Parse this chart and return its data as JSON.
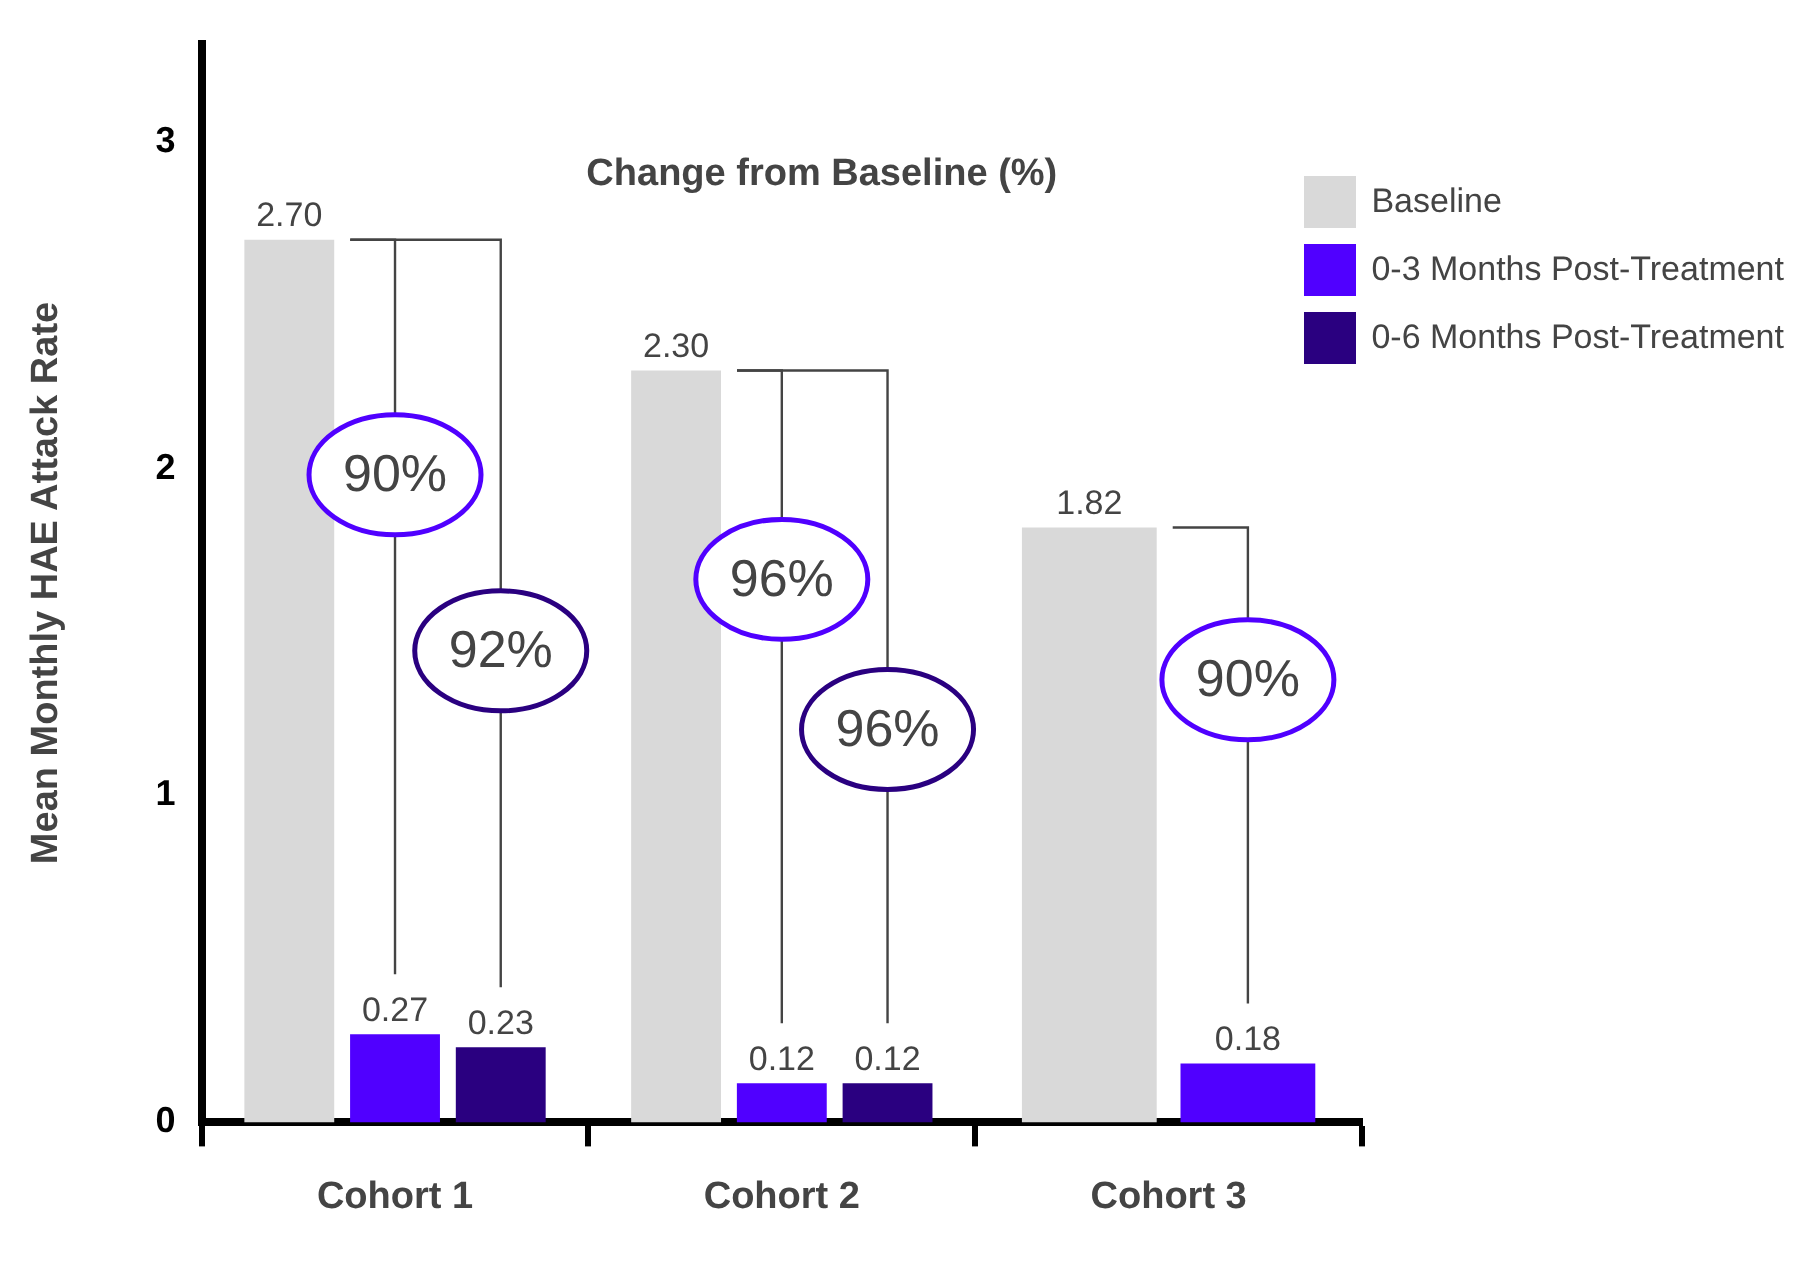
{
  "chart_data": {
    "type": "bar",
    "title": "Change from Baseline (%)",
    "ylabel": "Mean Monthly HAE Attack Rate",
    "categories": [
      "Cohort 1",
      "Cohort 2",
      "Cohort 3"
    ],
    "series": [
      {
        "name": "Baseline",
        "color": "#d9d9d9",
        "values": [
          2.7,
          2.3,
          1.82
        ],
        "value_labels": [
          "2.70",
          "2.30",
          "1.82"
        ]
      },
      {
        "name": "0-3 Months Post-Treatment",
        "color": "#5000ff",
        "values": [
          0.27,
          0.12,
          0.18
        ],
        "value_labels": [
          "0.27",
          "0.12",
          "0.18"
        ]
      },
      {
        "name": "0-6 Months Post-Treatment",
        "color": "#2a0080",
        "values": [
          0.23,
          0.12,
          null
        ],
        "value_labels": [
          "0.23",
          "0.12",
          null
        ]
      }
    ],
    "annotations": [
      "90%",
      "92%",
      "96%",
      "96%",
      "90%"
    ],
    "ylim": [
      0,
      3.3
    ],
    "yticks": [
      0,
      1,
      2,
      3
    ],
    "grid": false,
    "legend": "top right"
  }
}
